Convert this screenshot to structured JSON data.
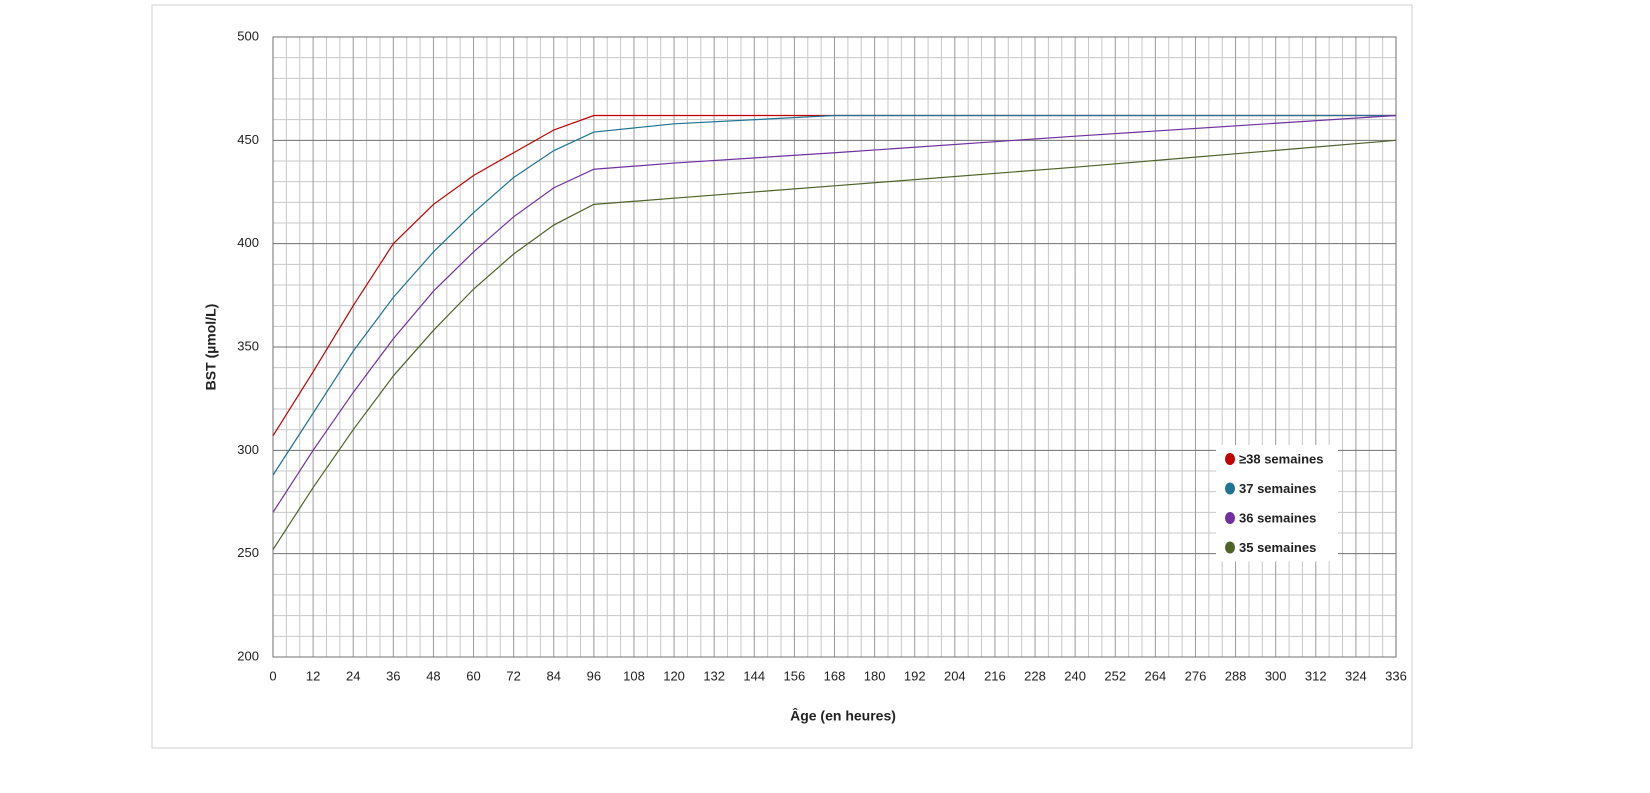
{
  "chart_data": {
    "type": "line",
    "x_label": "Âge (en heures)",
    "y_label": "BST (µmol/L)",
    "x": [
      0,
      12,
      24,
      36,
      48,
      60,
      72,
      84,
      96,
      120,
      168,
      240,
      336
    ],
    "series": [
      {
        "name": "≥38 semaines",
        "color": "#c00000",
        "values": [
          307,
          338,
          370,
          400,
          419,
          433,
          444,
          455,
          462,
          462,
          462,
          462,
          462
        ]
      },
      {
        "name": "37 semaines",
        "color": "#1f7394",
        "values": [
          288,
          318,
          348,
          374,
          396,
          415,
          432,
          445,
          454,
          458,
          462,
          462,
          462
        ]
      },
      {
        "name": "36 semaines",
        "color": "#7030a0",
        "values": [
          270,
          300,
          328,
          354,
          377,
          396,
          413,
          427,
          436,
          439,
          444,
          452,
          462
        ]
      },
      {
        "name": "35 semaines",
        "color": "#4f6228",
        "values": [
          252,
          282,
          310,
          336,
          358,
          378,
          395,
          409,
          419,
          422,
          428,
          437,
          450
        ]
      }
    ],
    "xlim": [
      0,
      336
    ],
    "xticks": [
      0,
      12,
      24,
      36,
      48,
      60,
      72,
      84,
      96,
      108,
      120,
      132,
      144,
      156,
      168,
      180,
      192,
      204,
      216,
      228,
      240,
      252,
      264,
      276,
      288,
      300,
      312,
      324,
      336
    ],
    "ylim": [
      200,
      500
    ],
    "yticks": [
      200,
      250,
      300,
      350,
      400,
      450,
      500
    ],
    "grid": true,
    "legend": "right"
  }
}
